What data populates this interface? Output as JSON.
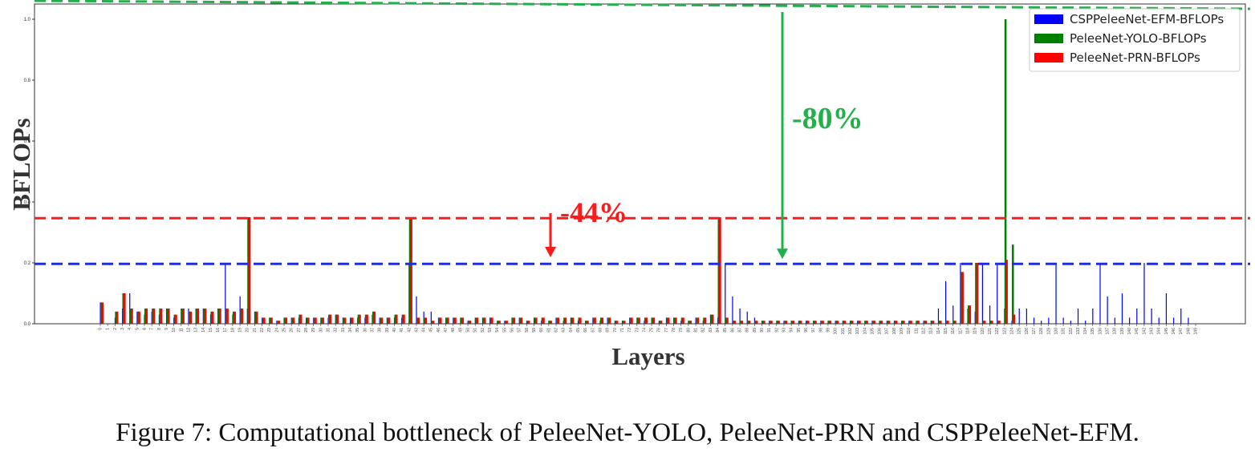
{
  "chart_data": {
    "type": "bar",
    "xlabel": "Layers",
    "ylabel": "BFLOPs",
    "ylim": [
      0,
      1.0
    ],
    "y_ticks": [
      "0.0",
      "0.2",
      "0.4",
      "0.6",
      "0.8",
      "1.0"
    ],
    "grid": false,
    "legend_position": "top-right",
    "x_count": 150,
    "series": [
      {
        "name": "CSPPeleeNet-EFM-BFLOPs",
        "color": "#0000ff",
        "values": [
          0.07,
          0,
          0.02,
          0.05,
          0.1,
          0.04,
          0.03,
          0.04,
          0.03,
          0.05,
          0.02,
          0.05,
          0.05,
          0.05,
          0.05,
          0.03,
          0.05,
          0.2,
          0.03,
          0.09,
          0.05,
          0.04,
          0.02,
          0.02,
          0.01,
          0.02,
          0.02,
          0.02,
          0.02,
          0.02,
          0.02,
          0.02,
          0.03,
          0.02,
          0.02,
          0.02,
          0.02,
          0.03,
          0.02,
          0.02,
          0.02,
          0.02,
          0.2,
          0.09,
          0.04,
          0.04,
          0.02,
          0.02,
          0.02,
          0.02,
          0.01,
          0.02,
          0.02,
          0.02,
          0.01,
          0.01,
          0.02,
          0.02,
          0.01,
          0.02,
          0.01,
          0.01,
          0.02,
          0.01,
          0.02,
          0.01,
          0.01,
          0.02,
          0.01,
          0.02,
          0.01,
          0.01,
          0.02,
          0.02,
          0.01,
          0.02,
          0.01,
          0.02,
          0.02,
          0.01,
          0.01,
          0.02,
          0.01,
          0.03,
          0.02,
          0.2,
          0.09,
          0.05,
          0.04,
          0.02,
          0.01,
          0.01,
          0.01,
          0.01,
          0.01,
          0.01,
          0.01,
          0.01,
          0.01,
          0.01,
          0.01,
          0.01,
          0.01,
          0.01,
          0.01,
          0.01,
          0.01,
          0.01,
          0.01,
          0.01,
          0.01,
          0.01,
          0.01,
          0.01,
          0.05,
          0.14,
          0.06,
          0.2,
          0.05,
          0.04,
          0.2,
          0.06,
          0.2,
          0.05,
          0.01,
          0.05,
          0.05,
          0.02,
          0.01,
          0.02,
          0.2,
          0.02,
          0.01,
          0.05,
          0.01,
          0.05,
          0.2,
          0.09,
          0.02,
          0.1,
          0.02,
          0.05,
          0.2,
          0.05,
          0.02,
          0.1,
          0.02,
          0.05,
          0.02,
          0
        ]
      },
      {
        "name": "PeleeNet-YOLO-BFLOPs",
        "color": "#008000",
        "values": [
          0.07,
          0,
          0.04,
          0.1,
          0.05,
          0.04,
          0.05,
          0.05,
          0.05,
          0.05,
          0.03,
          0.05,
          0.04,
          0.05,
          0.05,
          0.04,
          0.05,
          0.05,
          0.04,
          0.05,
          0.35,
          0.04,
          0.02,
          0.02,
          0.01,
          0.02,
          0.02,
          0.03,
          0.02,
          0.02,
          0.02,
          0.03,
          0.03,
          0.02,
          0.02,
          0.03,
          0.03,
          0.04,
          0.02,
          0.02,
          0.03,
          0.03,
          0.35,
          0.02,
          0.02,
          0.01,
          0.02,
          0.02,
          0.02,
          0.02,
          0.01,
          0.02,
          0.02,
          0.02,
          0.01,
          0.01,
          0.02,
          0.02,
          0.01,
          0.02,
          0.02,
          0.01,
          0.02,
          0.02,
          0.02,
          0.02,
          0.01,
          0.02,
          0.02,
          0.02,
          0.01,
          0.01,
          0.02,
          0.02,
          0.02,
          0.02,
          0.01,
          0.02,
          0.02,
          0.02,
          0.01,
          0.02,
          0.02,
          0.03,
          0.35,
          0.02,
          0.01,
          0.01,
          0.01,
          0.01,
          0.01,
          0.01,
          0.01,
          0.01,
          0.01,
          0.01,
          0.01,
          0.01,
          0.01,
          0.01,
          0.01,
          0.01,
          0.01,
          0.01,
          0.01,
          0.01,
          0.01,
          0.01,
          0.01,
          0.01,
          0.01,
          0.01,
          0.01,
          0.01,
          0.01,
          0.01,
          0.01,
          0.17,
          0.06,
          0.2,
          0.01,
          0.01,
          0.01,
          1.0,
          0.26,
          0,
          0,
          0,
          0,
          0,
          0,
          0,
          0,
          0,
          0,
          0,
          0,
          0,
          0,
          0,
          0,
          0,
          0,
          0,
          0,
          0,
          0,
          0,
          0,
          0,
          0,
          0
        ]
      },
      {
        "name": "PeleeNet-PRN-BFLOPs",
        "color": "#ff0000",
        "values": [
          0.07,
          0,
          0.04,
          0.1,
          0.05,
          0.04,
          0.05,
          0.05,
          0.05,
          0.05,
          0.03,
          0.05,
          0.04,
          0.05,
          0.05,
          0.04,
          0.05,
          0.05,
          0.04,
          0.05,
          0.35,
          0.04,
          0.02,
          0.02,
          0.01,
          0.02,
          0.02,
          0.03,
          0.02,
          0.02,
          0.02,
          0.03,
          0.03,
          0.02,
          0.02,
          0.03,
          0.03,
          0.04,
          0.02,
          0.02,
          0.03,
          0.03,
          0.35,
          0.02,
          0.02,
          0.01,
          0.02,
          0.02,
          0.02,
          0.02,
          0.01,
          0.02,
          0.02,
          0.02,
          0.01,
          0.01,
          0.02,
          0.02,
          0.01,
          0.02,
          0.02,
          0.01,
          0.02,
          0.02,
          0.02,
          0.02,
          0.01,
          0.02,
          0.02,
          0.02,
          0.01,
          0.01,
          0.02,
          0.02,
          0.02,
          0.02,
          0.01,
          0.02,
          0.02,
          0.02,
          0.01,
          0.02,
          0.02,
          0.03,
          0.35,
          0.02,
          0.01,
          0.01,
          0.01,
          0.01,
          0.01,
          0.01,
          0.01,
          0.01,
          0.01,
          0.01,
          0.01,
          0.01,
          0.01,
          0.01,
          0.01,
          0.01,
          0.01,
          0.01,
          0.01,
          0.01,
          0.01,
          0.01,
          0.01,
          0.01,
          0.01,
          0.01,
          0.01,
          0.01,
          0.01,
          0.01,
          0.01,
          0.17,
          0.06,
          0.2,
          0.01,
          0.01,
          0.01,
          0.21,
          0.03,
          0,
          0,
          0,
          0,
          0,
          0,
          0,
          0,
          0,
          0,
          0,
          0,
          0,
          0,
          0,
          0,
          0,
          0,
          0,
          0,
          0,
          0,
          0,
          0,
          0,
          0,
          0
        ]
      }
    ],
    "reference_lines": [
      {
        "name": "PeleeNet-YOLO peak",
        "y": 1.0,
        "color": "#22b04b"
      },
      {
        "name": "PeleeNet-PRN peak",
        "y": 0.36,
        "color": "#ff1a1a"
      },
      {
        "name": "CSPPeleeNet-EFM peak",
        "y": 0.21,
        "color": "#1f2de0"
      }
    ],
    "annotations": [
      {
        "text": "-80%",
        "color": "#22b04b",
        "from_y": 1.0,
        "to_y": 0.21
      },
      {
        "text": "-44%",
        "color": "#ff1a1a",
        "from_y": 0.36,
        "to_y": 0.21
      }
    ]
  },
  "caption": "Figure 7: Computational bottleneck of PeleeNet-YOLO, PeleeNet-PRN and CSPPeleeNet-EFM."
}
